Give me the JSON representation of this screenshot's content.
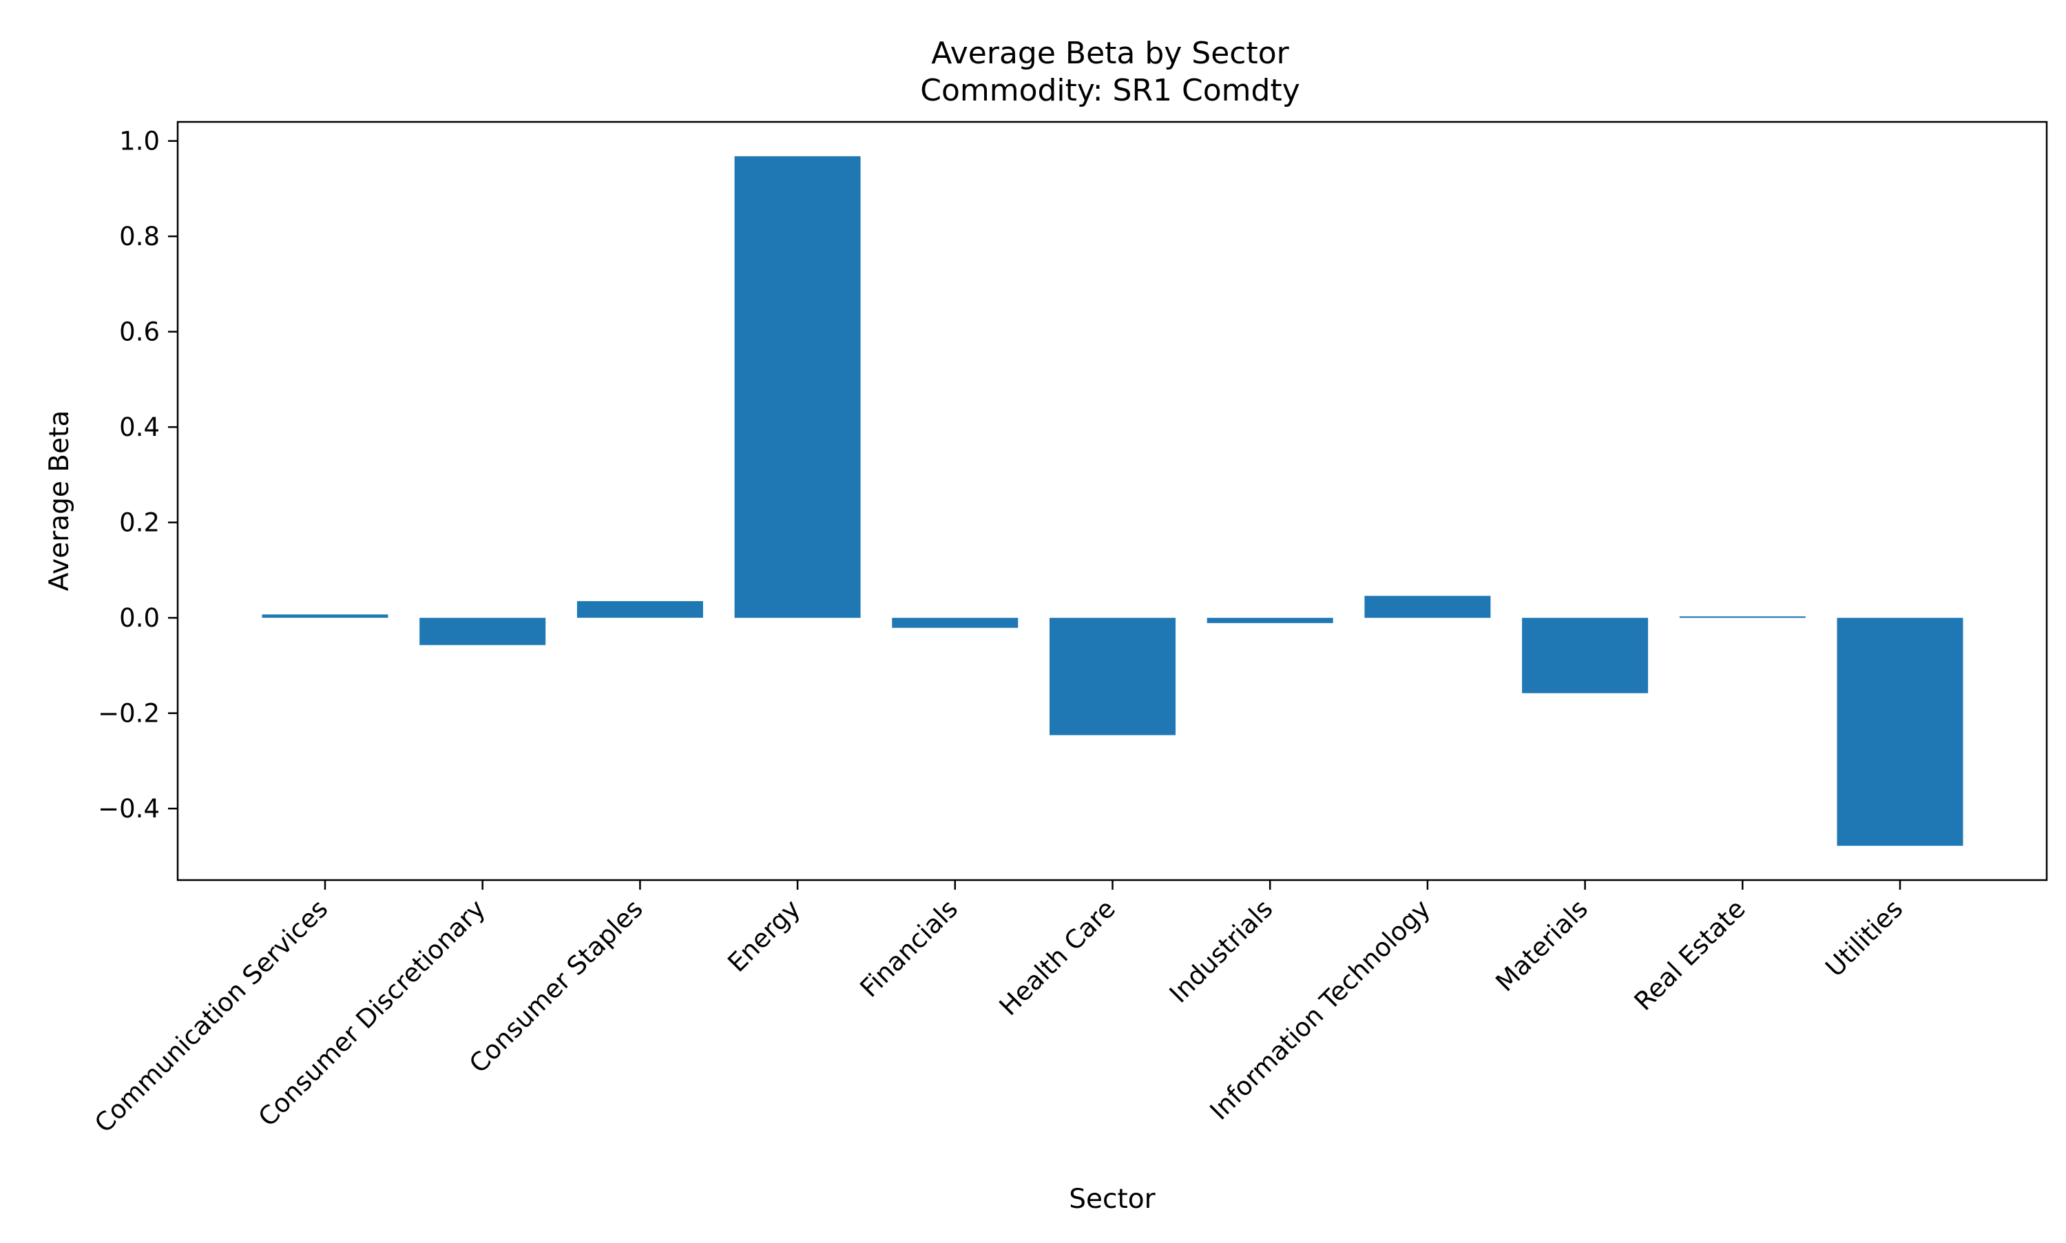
{
  "chart_data": {
    "type": "bar",
    "title": "Average Beta by Sector",
    "subtitle": "Commodity: SR1 Comdty",
    "xlabel": "Sector",
    "ylabel": "Average Beta",
    "categories": [
      "Communication Services",
      "Consumer Discretionary",
      "Consumer Staples",
      "Energy",
      "Financials",
      "Health Care",
      "Industrials",
      "Information Technology",
      "Materials",
      "Real Estate",
      "Utilities"
    ],
    "values": [
      0.007,
      -0.057,
      0.035,
      0.968,
      -0.021,
      -0.246,
      -0.011,
      0.046,
      -0.158,
      0.003,
      -0.478
    ],
    "ylim": [
      -0.55,
      1.04
    ],
    "yticks": [
      -0.4,
      -0.2,
      0.0,
      0.2,
      0.4,
      0.6,
      0.8,
      1.0
    ],
    "ytick_labels": [
      "−0.4",
      "−0.2",
      "0.0",
      "0.2",
      "0.4",
      "0.6",
      "0.8",
      "1.0"
    ],
    "bar_color": "#1f77b4",
    "grid": false,
    "legend": "none"
  }
}
